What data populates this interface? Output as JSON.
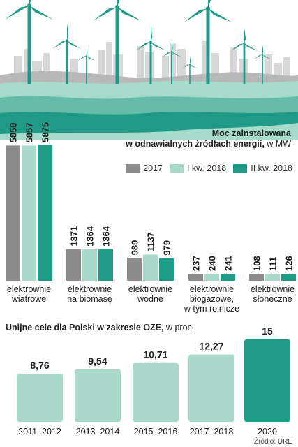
{
  "title": {
    "bold": "Moc zainstalowana",
    "line2_bold": "w odnawialnych źródłach energii,",
    "unit": " w MW"
  },
  "legend": [
    {
      "label": "2017",
      "color": "#8c8c8c"
    },
    {
      "label": "I kw. 2018",
      "color": "#a7d8c9"
    },
    {
      "label": "II kw. 2018",
      "color": "#1f9a86"
    }
  ],
  "section2": {
    "title": "Unijne cele dla Polski w zakresie OZE,",
    "unit": " w proc."
  },
  "source": "Źródło: URE",
  "chart_data": [
    {
      "type": "bar",
      "title": "Moc zainstalowana w odnawialnych źródłach energii, w MW",
      "categories": [
        [
          "elektrownie",
          "wiatrowe"
        ],
        [
          "elektrownie",
          "na biomasę"
        ],
        [
          "elektrownie",
          "wodne"
        ],
        [
          "elektrownie",
          "biogazowe,",
          "w tym rolnicze"
        ],
        [
          "elektrownie",
          "słoneczne"
        ]
      ],
      "series": [
        {
          "name": "2017",
          "values": [
            5858,
            1371,
            989,
            237,
            108
          ]
        },
        {
          "name": "I kw. 2018",
          "values": [
            5857,
            1364,
            1137,
            240,
            111
          ]
        },
        {
          "name": "II kw. 2018",
          "values": [
            5875,
            1364,
            979,
            241,
            126
          ]
        }
      ],
      "grid": false,
      "legend_position": "top-right"
    },
    {
      "type": "bar",
      "title": "Unijne cele dla Polski w zakresie OZE, w proc.",
      "categories": [
        "2011–2012",
        "2013–2014",
        "2015–2016",
        "2017–2018",
        "2020"
      ],
      "values": [
        "8,76",
        "9,54",
        "10,71",
        "12,27",
        "15"
      ],
      "values_numeric": [
        8.76,
        9.54,
        10.71,
        12.27,
        15
      ],
      "highlight_color": "#1f9a86",
      "base_color": "#a7d8c9",
      "grid": false
    }
  ]
}
